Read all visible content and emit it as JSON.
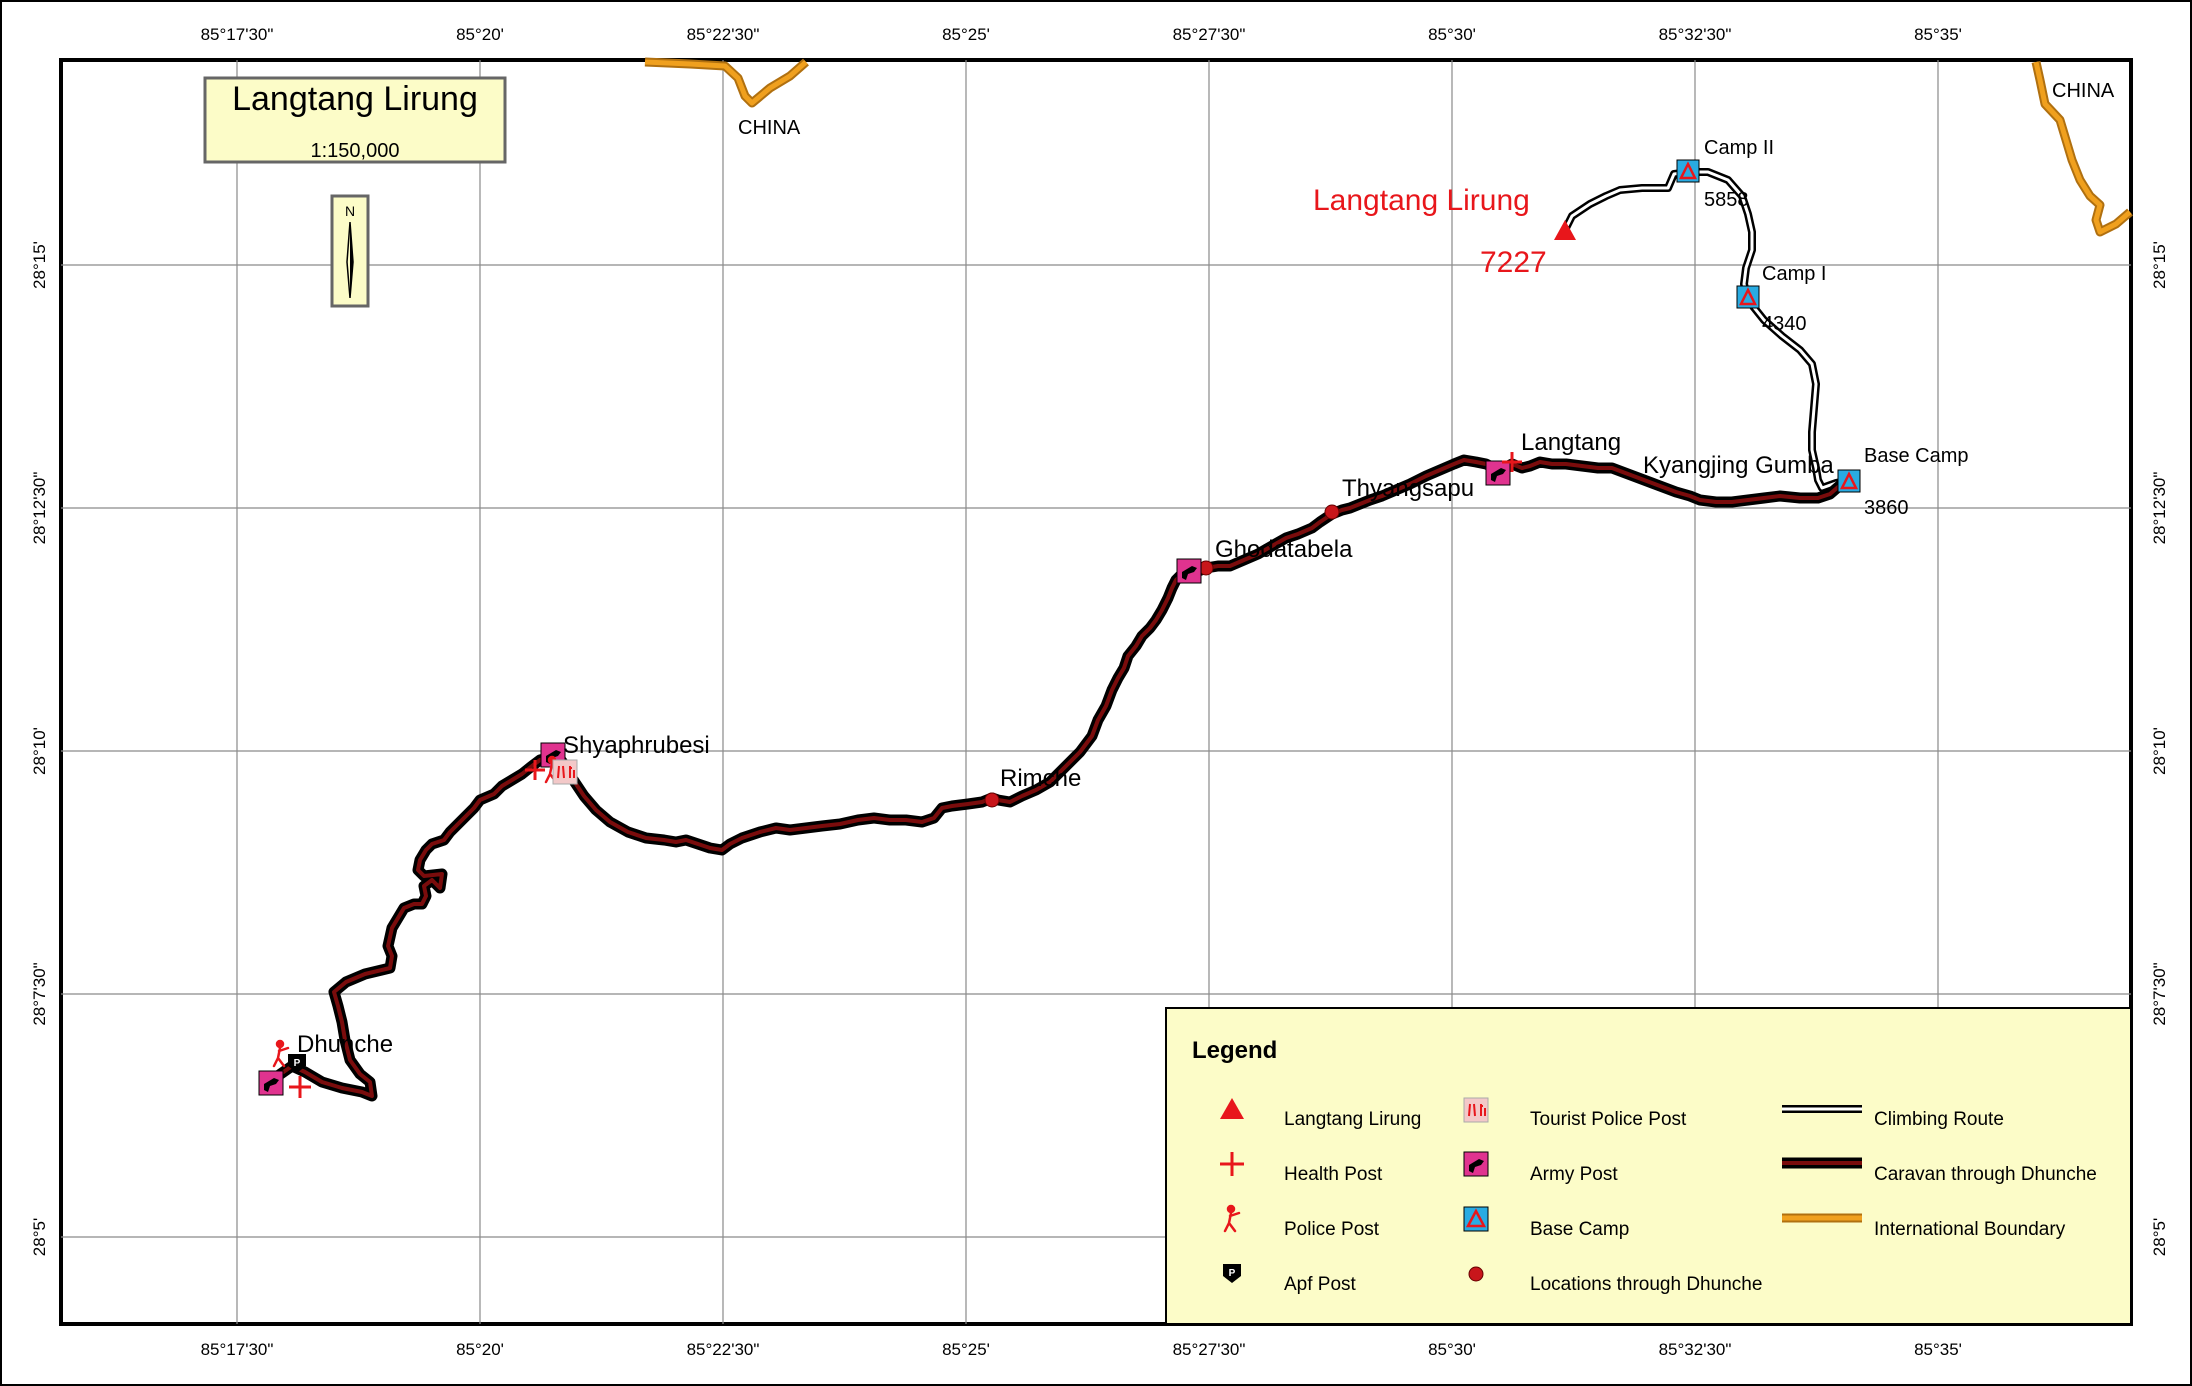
{
  "title": {
    "name": "Langtang Lirung",
    "scale": "1:150,000"
  },
  "north_arrow": {
    "letter": "N"
  },
  "graticule": {
    "top_lon_labels": [
      "85°17'30\"",
      "85°20'",
      "85°22'30\"",
      "85°25'",
      "85°27'30\"",
      "85°30'",
      "85°32'30\"",
      "85°35'"
    ],
    "bottom_lon_labels": [
      "85°17'30\"",
      "85°20'",
      "85°22'30\"",
      "85°25'",
      "85°27'30\"",
      "85°30'",
      "85°32'30\"",
      "85°35'"
    ],
    "lat_labels": [
      "28°15'",
      "28°12'30\"",
      "28°10'",
      "28°7'30\"",
      "28°5'"
    ]
  },
  "country_labels": [
    "CHINA",
    "CHINA"
  ],
  "peak": {
    "name": "Langtang Lirung",
    "elevation": "7227"
  },
  "places": {
    "dhunche": "Dhunche",
    "shyaphrubesi": "Shyaphrubesi",
    "rimche": "Rimche",
    "ghodatabela": "Ghodatabela",
    "thyangsapu": "Thyangsapu",
    "langtang": "Langtang",
    "kyangjing": "Kyangjing Gumba"
  },
  "camps": {
    "base": {
      "name": "Base Camp",
      "elev": "3860"
    },
    "camp1": {
      "name": "Camp I",
      "elev": "4340"
    },
    "camp2": {
      "name": "Camp II",
      "elev": "5858"
    }
  },
  "legend": {
    "title": "Legend",
    "items": [
      "Langtang Lirung",
      "Health Post",
      "Police Post",
      "Apf Post",
      "Tourist Police Post",
      "Army Post",
      "Base Camp",
      "Locations through Dhunche",
      "Climbing Route",
      "Caravan through Dhunche",
      "International Boundary"
    ]
  },
  "colors": {
    "red": "#e8161b",
    "army_magenta": "#e0338f",
    "base_camp_cyan": "#29abe2",
    "route_dark": "#7a0c0c",
    "boundary_orange": "#f0a01e",
    "legend_bg": "#fcfcc8"
  }
}
